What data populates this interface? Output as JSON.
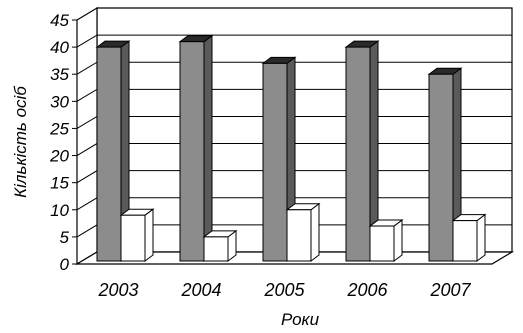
{
  "chart_data": {
    "type": "bar",
    "style": "3d-clustered-column",
    "categories": [
      "2003",
      "2004",
      "2005",
      "2006",
      "2007"
    ],
    "series": [
      {
        "values": [
          40,
          41,
          37,
          40,
          35
        ],
        "color": "#8c8c8c"
      },
      {
        "values": [
          9,
          5,
          10,
          7,
          8
        ],
        "color": "#ffffff"
      }
    ],
    "xlabel": "Роки",
    "ylabel": "Кількість осіб",
    "ylim": [
      0,
      45
    ],
    "yticks": [
      0,
      5,
      10,
      15,
      20,
      25,
      30,
      35,
      40,
      45
    ],
    "grid": true,
    "legend": "none"
  }
}
